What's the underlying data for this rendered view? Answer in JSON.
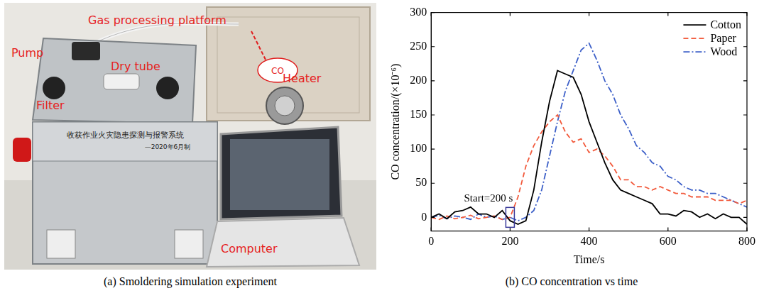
{
  "photo": {
    "labels": [
      "Gas processing platform",
      "Pump",
      "Filter",
      "Dry tube",
      "CO",
      "Heater",
      "Computer"
    ],
    "device_labels": [
      "收获作业火灾隐患探测与报警系统",
      "—2020年6月制"
    ]
  },
  "captions": [
    "(a) Smoldering simulation experiment",
    "(b) CO concentration vs time"
  ],
  "chart_data": {
    "type": "line",
    "x_label": "Time/s",
    "y_label": "CO concentration/(×10⁻⁶)",
    "x": [
      0,
      20,
      40,
      60,
      80,
      100,
      120,
      140,
      160,
      180,
      200,
      220,
      240,
      260,
      280,
      300,
      320,
      340,
      360,
      380,
      400,
      420,
      440,
      460,
      480,
      500,
      520,
      540,
      560,
      580,
      600,
      620,
      640,
      660,
      680,
      700,
      720,
      740,
      760,
      780,
      800
    ],
    "series": [
      {
        "name": "Cotton",
        "color": "#000000",
        "line_style": "solid",
        "values": [
          0,
          5,
          -2,
          8,
          10,
          15,
          5,
          5,
          0,
          10,
          -5,
          -10,
          -5,
          40,
          110,
          170,
          215,
          210,
          205,
          180,
          140,
          110,
          80,
          55,
          40,
          35,
          30,
          25,
          20,
          5,
          5,
          2,
          10,
          8,
          0,
          5,
          -2,
          5,
          0,
          0,
          -10
        ]
      },
      {
        "name": "Paper",
        "color": "#f25a3c",
        "line_style": "dashed",
        "values": [
          0,
          -3,
          2,
          -2,
          0,
          3,
          -2,
          0,
          2,
          -3,
          0,
          30,
          75,
          105,
          125,
          140,
          150,
          125,
          110,
          115,
          95,
          100,
          90,
          75,
          55,
          55,
          45,
          45,
          40,
          45,
          40,
          35,
          35,
          30,
          30,
          30,
          25,
          25,
          25,
          20,
          25
        ]
      },
      {
        "name": "Wood",
        "color": "#3c5fc8",
        "line_style": "dashdot",
        "values": [
          0,
          3,
          -2,
          2,
          0,
          -3,
          5,
          0,
          2,
          -3,
          0,
          -5,
          0,
          10,
          40,
          90,
          140,
          185,
          215,
          245,
          255,
          230,
          200,
          180,
          150,
          130,
          105,
          95,
          80,
          75,
          60,
          55,
          45,
          40,
          40,
          35,
          35,
          30,
          25,
          20,
          15
        ]
      }
    ],
    "xlim": [
      0,
      800
    ],
    "xticks": [
      0,
      200,
      400,
      600,
      800
    ],
    "ylim": [
      -20,
      300
    ],
    "yticks": [
      0,
      50,
      100,
      150,
      200,
      250,
      300
    ],
    "grid": false,
    "legend": "upper right",
    "annotations": [
      {
        "text": "Start=200 s",
        "x": 200,
        "y": 0
      }
    ]
  }
}
